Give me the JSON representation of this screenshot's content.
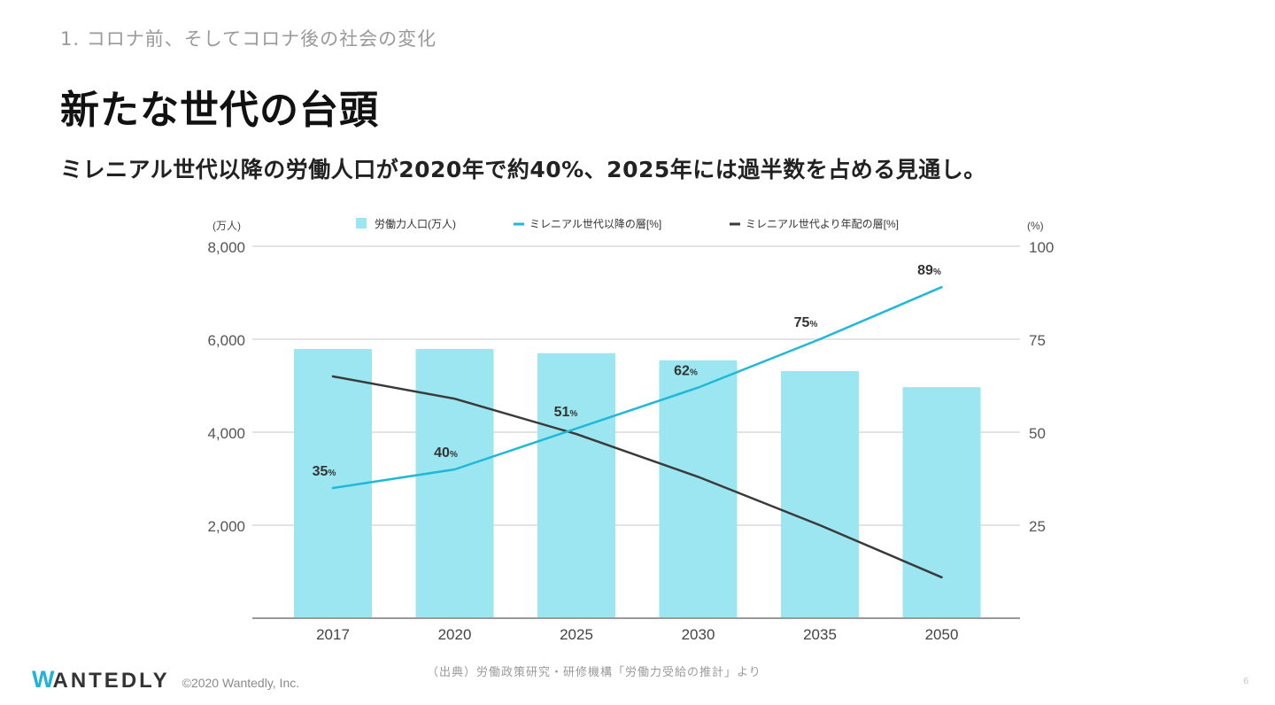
{
  "header": {
    "section_label": "1. コロナ前、そしてコロナ後の社会の変化",
    "title": "新たな世代の台頭",
    "subtitle": "ミレニアル世代以降の労働人口が2020年で約40%、2025年には過半数を占める見通し。"
  },
  "chart_data": {
    "type": "bar",
    "title": "",
    "categories": [
      "2017",
      "2020",
      "2025",
      "2030",
      "2035",
      "2050"
    ],
    "y_left": {
      "label": "(万人)",
      "range": [
        0,
        8000
      ],
      "ticks": [
        0,
        2000,
        4000,
        6000,
        8000
      ],
      "tick_labels": [
        "2,000",
        "4,000",
        "6,000",
        "8,000"
      ]
    },
    "y_right": {
      "label": "(%)",
      "range": [
        0,
        100
      ],
      "ticks": [
        25,
        50,
        75,
        100
      ],
      "tick_labels": [
        "25",
        "50",
        "75",
        "100"
      ]
    },
    "grid": true,
    "legend_position": "top",
    "series": [
      {
        "name": "労働力人口(万人)",
        "type": "bar",
        "axis": "left",
        "color": "#9be6f1",
        "values": [
          5790,
          5790,
          5700,
          5545,
          5315,
          4970
        ]
      },
      {
        "name": "ミレニアル世代以降の層[%]",
        "type": "line",
        "axis": "right",
        "color": "#1fb8d8",
        "values": [
          35,
          40,
          51,
          62,
          75,
          89
        ],
        "data_labels": [
          "35",
          "40",
          "51",
          "62",
          "75",
          "89"
        ],
        "label_suffix": "%"
      },
      {
        "name": "ミレニアル世代より年配の層[%]",
        "type": "line",
        "axis": "right",
        "color": "#3a3a3a",
        "values": [
          65,
          59,
          49.5,
          38,
          25,
          11
        ]
      }
    ]
  },
  "footer": {
    "source": "（出典）労働政策研究・研修機構「労働力受給の推計」より",
    "logo_first": "W",
    "logo_rest": "ANTEDLY",
    "copyright": "©2020 Wantedly, Inc.",
    "page_number": "6"
  }
}
